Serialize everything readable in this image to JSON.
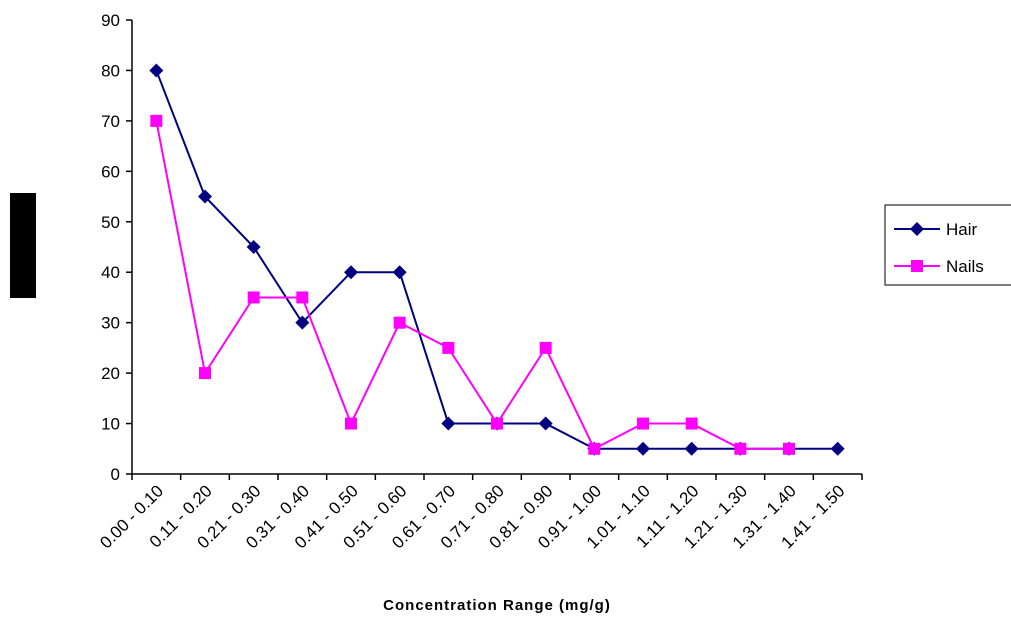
{
  "chart_data": {
    "type": "line",
    "xlabel": "Concentration Range (mg/g)",
    "ylabel": "",
    "ylim": [
      0,
      90
    ],
    "yticks": [
      0,
      10,
      20,
      30,
      40,
      50,
      60,
      70,
      80,
      90
    ],
    "grid": false,
    "legend": "right",
    "categories": [
      "0.00 - 0.10",
      "0.11 - 0.20",
      "0.21 - 0.30",
      "0.31 - 0.40",
      "0.41 - 0.50",
      "0.51 - 0.60",
      "0.61 - 0.70",
      "0.71 - 0.80",
      "0.81 - 0.90",
      "0.91 - 1.00",
      "1.01 - 1.10",
      "1.11 - 1.20",
      "1.21 - 1.30",
      "1.31 - 1.40",
      "1.41 - 1.50"
    ],
    "series": [
      {
        "name": "Hair",
        "color": "#000080",
        "marker": "diamond",
        "values": [
          80,
          55,
          45,
          30,
          40,
          40,
          10,
          10,
          10,
          5,
          5,
          5,
          5,
          5,
          5
        ]
      },
      {
        "name": "Nails",
        "color": "#ff00ff",
        "marker": "square",
        "values": [
          70,
          20,
          35,
          35,
          10,
          30,
          25,
          10,
          25,
          5,
          10,
          10,
          5,
          5,
          null
        ]
      }
    ]
  }
}
